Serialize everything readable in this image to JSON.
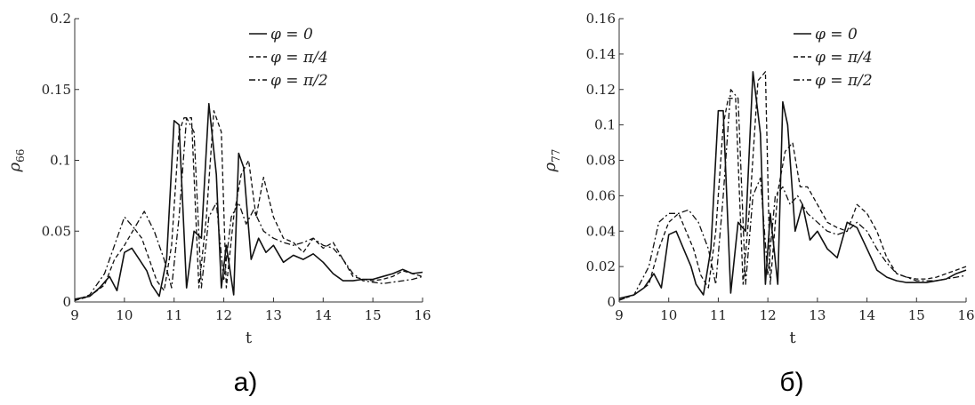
{
  "panels": [
    {
      "label": "а)",
      "ylabel_base": "ρ",
      "ylabel_sub": "66",
      "xlabel": "t"
    },
    {
      "label": "б)",
      "ylabel_base": "ρ",
      "ylabel_sub": "77",
      "xlabel": "t"
    }
  ],
  "legend": [
    "φ = 0",
    "φ = π/4",
    "φ = π/2"
  ],
  "chart_data": [
    {
      "type": "line",
      "xlabel": "t",
      "ylabel": "ρ66",
      "xlim": [
        9,
        16
      ],
      "ylim": [
        0,
        0.2
      ],
      "xticks": [
        9,
        10,
        11,
        12,
        13,
        14,
        15,
        16
      ],
      "yticks": [
        0,
        0.05,
        0.1,
        0.15,
        0.2
      ],
      "ytick_labels": [
        "0",
        "0.05",
        "0.1",
        "0.15",
        "0.2"
      ],
      "legend_position": "top-right",
      "series": [
        {
          "name": "φ = 0",
          "style": "solid",
          "x": [
            9.0,
            9.3,
            9.5,
            9.7,
            9.85,
            10.0,
            10.15,
            10.3,
            10.45,
            10.55,
            10.7,
            10.85,
            11.0,
            11.1,
            11.25,
            11.4,
            11.55,
            11.7,
            11.85,
            11.95,
            12.05,
            12.2,
            12.3,
            12.4,
            12.55,
            12.7,
            12.85,
            13.0,
            13.2,
            13.4,
            13.6,
            13.8,
            14.0,
            14.2,
            14.4,
            14.6,
            14.8,
            15.0,
            15.2,
            15.4,
            15.6,
            15.8,
            16.0
          ],
          "y": [
            0.002,
            0.004,
            0.01,
            0.018,
            0.008,
            0.035,
            0.038,
            0.03,
            0.022,
            0.012,
            0.004,
            0.03,
            0.128,
            0.125,
            0.01,
            0.05,
            0.045,
            0.14,
            0.09,
            0.01,
            0.04,
            0.005,
            0.105,
            0.095,
            0.03,
            0.045,
            0.035,
            0.04,
            0.028,
            0.033,
            0.03,
            0.034,
            0.028,
            0.02,
            0.015,
            0.015,
            0.016,
            0.016,
            0.018,
            0.02,
            0.023,
            0.02,
            0.021
          ]
        },
        {
          "name": "φ = π/4",
          "style": "dashed",
          "x": [
            9.0,
            9.3,
            9.6,
            9.8,
            10.0,
            10.2,
            10.35,
            10.5,
            10.65,
            10.8,
            10.95,
            11.1,
            11.2,
            11.35,
            11.5,
            11.65,
            11.8,
            11.95,
            12.05,
            12.2,
            12.35,
            12.5,
            12.65,
            12.8,
            13.0,
            13.2,
            13.4,
            13.6,
            13.8,
            14.0,
            14.2,
            14.4,
            14.6,
            14.8,
            15.0,
            15.2,
            15.4,
            15.6,
            15.8,
            16.0
          ],
          "y": [
            0.001,
            0.004,
            0.012,
            0.03,
            0.04,
            0.052,
            0.045,
            0.03,
            0.015,
            0.008,
            0.04,
            0.12,
            0.13,
            0.13,
            0.01,
            0.06,
            0.135,
            0.12,
            0.01,
            0.06,
            0.09,
            0.1,
            0.06,
            0.088,
            0.06,
            0.045,
            0.042,
            0.035,
            0.045,
            0.038,
            0.042,
            0.03,
            0.018,
            0.016,
            0.015,
            0.016,
            0.018,
            0.022,
            0.02,
            0.018
          ]
        },
        {
          "name": "φ = π/2",
          "style": "dashdot",
          "x": [
            9.0,
            9.3,
            9.6,
            9.8,
            10.0,
            10.2,
            10.4,
            10.6,
            10.8,
            10.95,
            11.1,
            11.25,
            11.4,
            11.55,
            11.7,
            11.85,
            12.0,
            12.15,
            12.3,
            12.45,
            12.6,
            12.8,
            13.0,
            13.2,
            13.4,
            13.6,
            13.8,
            14.0,
            14.2,
            14.4,
            14.6,
            14.8,
            15.0,
            15.2,
            15.4,
            15.6,
            15.8,
            16.0
          ],
          "y": [
            0.001,
            0.005,
            0.02,
            0.04,
            0.06,
            0.052,
            0.064,
            0.05,
            0.03,
            0.01,
            0.06,
            0.13,
            0.12,
            0.01,
            0.06,
            0.07,
            0.015,
            0.06,
            0.07,
            0.055,
            0.065,
            0.05,
            0.045,
            0.042,
            0.04,
            0.042,
            0.045,
            0.04,
            0.038,
            0.03,
            0.02,
            0.015,
            0.014,
            0.013,
            0.014,
            0.015,
            0.016,
            0.018
          ]
        }
      ]
    },
    {
      "type": "line",
      "xlabel": "t",
      "ylabel": "ρ77",
      "xlim": [
        9,
        16
      ],
      "ylim": [
        0,
        0.16
      ],
      "xticks": [
        9,
        10,
        11,
        12,
        13,
        14,
        15,
        16
      ],
      "yticks": [
        0,
        0.02,
        0.04,
        0.06,
        0.08,
        0.1,
        0.12,
        0.14,
        0.16
      ],
      "ytick_labels": [
        "0",
        "0.02",
        "0.04",
        "0.06",
        "0.08",
        "0.1",
        "0.12",
        "0.14",
        "0.16"
      ],
      "legend_position": "top-right",
      "series": [
        {
          "name": "φ = 0",
          "style": "solid",
          "x": [
            9.0,
            9.3,
            9.5,
            9.7,
            9.85,
            10.0,
            10.15,
            10.3,
            10.45,
            10.55,
            10.7,
            10.85,
            11.0,
            11.1,
            11.25,
            11.4,
            11.55,
            11.7,
            11.85,
            11.95,
            12.05,
            12.2,
            12.3,
            12.4,
            12.55,
            12.7,
            12.85,
            13.0,
            13.2,
            13.4,
            13.6,
            13.8,
            14.0,
            14.2,
            14.4,
            14.6,
            14.8,
            15.0,
            15.2,
            15.4,
            15.6,
            15.8,
            16.0
          ],
          "y": [
            0.002,
            0.004,
            0.008,
            0.016,
            0.008,
            0.038,
            0.04,
            0.03,
            0.02,
            0.01,
            0.004,
            0.03,
            0.108,
            0.108,
            0.005,
            0.045,
            0.04,
            0.13,
            0.095,
            0.01,
            0.05,
            0.01,
            0.113,
            0.1,
            0.04,
            0.055,
            0.035,
            0.04,
            0.03,
            0.025,
            0.045,
            0.042,
            0.03,
            0.018,
            0.014,
            0.012,
            0.011,
            0.011,
            0.011,
            0.012,
            0.013,
            0.016,
            0.018
          ]
        },
        {
          "name": "φ = π/4",
          "style": "dashed",
          "x": [
            9.0,
            9.3,
            9.6,
            9.8,
            10.0,
            10.2,
            10.35,
            10.5,
            10.65,
            10.8,
            10.95,
            11.1,
            11.2,
            11.35,
            11.5,
            11.65,
            11.8,
            11.95,
            12.05,
            12.2,
            12.35,
            12.5,
            12.65,
            12.8,
            13.0,
            13.2,
            13.4,
            13.6,
            13.8,
            14.0,
            14.2,
            14.4,
            14.6,
            14.8,
            15.0,
            15.2,
            15.4,
            15.6,
            15.8,
            16.0
          ],
          "y": [
            0.001,
            0.004,
            0.01,
            0.03,
            0.045,
            0.05,
            0.04,
            0.03,
            0.015,
            0.008,
            0.04,
            0.1,
            0.115,
            0.115,
            0.01,
            0.06,
            0.125,
            0.13,
            0.01,
            0.062,
            0.085,
            0.09,
            0.065,
            0.065,
            0.055,
            0.045,
            0.042,
            0.04,
            0.055,
            0.05,
            0.04,
            0.025,
            0.016,
            0.014,
            0.013,
            0.013,
            0.014,
            0.016,
            0.018,
            0.02
          ]
        },
        {
          "name": "φ = π/2",
          "style": "dashdot",
          "x": [
            9.0,
            9.3,
            9.6,
            9.8,
            10.0,
            10.2,
            10.4,
            10.6,
            10.8,
            10.95,
            11.1,
            11.25,
            11.4,
            11.55,
            11.7,
            11.85,
            12.0,
            12.15,
            12.3,
            12.45,
            12.6,
            12.8,
            13.0,
            13.2,
            13.4,
            13.6,
            13.8,
            14.0,
            14.2,
            14.4,
            14.6,
            14.8,
            15.0,
            15.2,
            15.4,
            15.6,
            15.8,
            16.0
          ],
          "y": [
            0.001,
            0.004,
            0.02,
            0.045,
            0.05,
            0.05,
            0.052,
            0.045,
            0.03,
            0.01,
            0.06,
            0.12,
            0.115,
            0.01,
            0.06,
            0.07,
            0.015,
            0.06,
            0.065,
            0.055,
            0.06,
            0.05,
            0.045,
            0.04,
            0.038,
            0.04,
            0.045,
            0.04,
            0.03,
            0.022,
            0.016,
            0.014,
            0.012,
            0.012,
            0.012,
            0.013,
            0.014,
            0.015
          ]
        }
      ]
    }
  ]
}
